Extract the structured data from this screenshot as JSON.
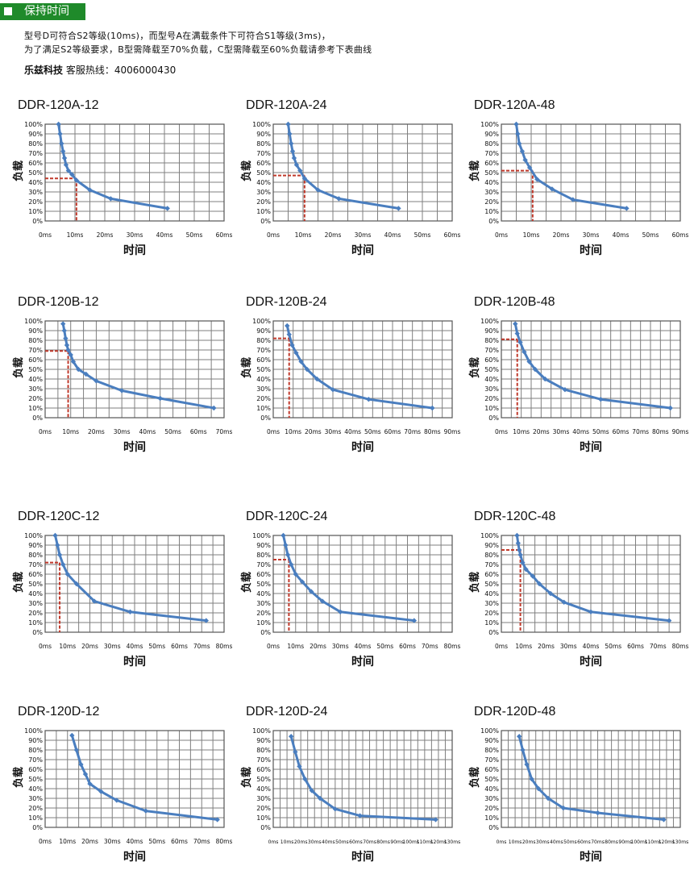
{
  "header": {
    "title": "保持时间"
  },
  "description": {
    "line1": "型号D可符合S2等级(10ms)，而型号A在满载条件下可符合S1等级(3ms)，",
    "line2": "为了满足S2等级要求，B型需降载至70%负载，C型需降载至60%负载请参考下表曲线"
  },
  "hotline": {
    "brand": "乐兹科技",
    "label": "客服热线：",
    "phone": "4006000430"
  },
  "axis_labels": {
    "x": "时间",
    "y": "负载"
  },
  "colors": {
    "line": "#4a7ebf",
    "grid": "#7f7f7f",
    "marker": "#c0392b",
    "header_bg": "#1f8a2a"
  },
  "chart_data": [
    {
      "type": "line",
      "title": "DDR-120A-12",
      "xlabel": "时间",
      "ylabel": "负载",
      "xticks": [
        "0ms",
        "10ms",
        "20ms",
        "30ms",
        "40ms",
        "50ms",
        "60ms"
      ],
      "xlim": [
        0,
        60
      ],
      "yticks": [
        "100%",
        "90%",
        "80%",
        "70%",
        "60%",
        "50%",
        "40%",
        "30%",
        "20%",
        "10%",
        "0%"
      ],
      "ylim": [
        0,
        100
      ],
      "x": [
        4.5,
        5,
        5.5,
        6,
        6.5,
        7,
        7.8,
        9,
        10.5,
        15,
        22,
        41
      ],
      "y": [
        100,
        90,
        80,
        72,
        65,
        58,
        52,
        48,
        42,
        32,
        23,
        13
      ],
      "marker_point": {
        "x": 10.5,
        "y": 44
      },
      "grid": true
    },
    {
      "type": "line",
      "title": "DDR-120A-24",
      "xlabel": "时间",
      "ylabel": "负载",
      "xticks": [
        "0ms",
        "10ms",
        "20ms",
        "30ms",
        "40ms",
        "50ms",
        "60ms"
      ],
      "xlim": [
        0,
        60
      ],
      "yticks": [
        "100%",
        "90%",
        "80%",
        "70%",
        "60%",
        "50%",
        "40%",
        "30%",
        "20%",
        "10%",
        "0%"
      ],
      "ylim": [
        0,
        100
      ],
      "x": [
        5,
        5.5,
        6,
        6.5,
        7,
        7.8,
        9,
        10.5,
        15,
        22,
        42
      ],
      "y": [
        100,
        90,
        80,
        72,
        65,
        58,
        52,
        44,
        32,
        23,
        13
      ],
      "marker_point": {
        "x": 10.5,
        "y": 47
      },
      "grid": true
    },
    {
      "type": "line",
      "title": "DDR-120A-48",
      "xlabel": "时间",
      "ylabel": "负载",
      "xticks": [
        "0ms",
        "10ms",
        "20ms",
        "30ms",
        "40ms",
        "50ms",
        "60ms"
      ],
      "xlim": [
        0,
        60
      ],
      "yticks": [
        "100%",
        "90%",
        "80%",
        "70%",
        "60%",
        "50%",
        "40%",
        "30%",
        "20%",
        "10%",
        "0%"
      ],
      "ylim": [
        0,
        100
      ],
      "x": [
        5,
        5.5,
        6,
        7,
        8,
        9.5,
        12,
        17,
        24,
        42
      ],
      "y": [
        100,
        90,
        80,
        72,
        63,
        55,
        43,
        33,
        22,
        13
      ],
      "marker_point": {
        "x": 10.5,
        "y": 52
      },
      "grid": true
    },
    {
      "type": "line",
      "title": "DDR-120B-12",
      "xlabel": "时间",
      "ylabel": "负载",
      "xticks": [
        "0ms",
        "10ms",
        "20ms",
        "30ms",
        "40ms",
        "50ms",
        "60ms",
        "70ms"
      ],
      "xlim": [
        0,
        70
      ],
      "yticks": [
        "100%",
        "90%",
        "80%",
        "70%",
        "60%",
        "50%",
        "40%",
        "30%",
        "20%",
        "10%",
        "0%"
      ],
      "ylim": [
        0,
        100
      ],
      "x": [
        7,
        7.5,
        8,
        8.5,
        9,
        10,
        11,
        13,
        16,
        20,
        30,
        45,
        66
      ],
      "y": [
        97,
        90,
        82,
        75,
        70,
        65,
        58,
        50,
        45,
        38,
        28,
        20,
        10
      ],
      "marker_point": {
        "x": 9,
        "y": 69
      },
      "grid": true
    },
    {
      "type": "line",
      "title": "DDR-120B-24",
      "xlabel": "时间",
      "ylabel": "负载",
      "xticks": [
        "0ms",
        "10ms",
        "20ms",
        "30ms",
        "40ms",
        "50ms",
        "60ms",
        "70ms",
        "80ms",
        "90ms"
      ],
      "xlim": [
        0,
        90
      ],
      "yticks": [
        "100%",
        "90%",
        "80%",
        "70%",
        "60%",
        "50%",
        "40%",
        "30%",
        "20%",
        "10%",
        "0%"
      ],
      "ylim": [
        0,
        100
      ],
      "x": [
        7,
        8,
        9.5,
        11.5,
        14,
        17,
        22,
        30,
        48,
        80
      ],
      "y": [
        95,
        86,
        75,
        67,
        58,
        50,
        40,
        29,
        19,
        10
      ],
      "marker_point": {
        "x": 8,
        "y": 82
      },
      "grid": true
    },
    {
      "type": "line",
      "title": "DDR-120B-48",
      "xlabel": "时间",
      "ylabel": "负载",
      "xticks": [
        "0ms",
        "10ms",
        "20ms",
        "30ms",
        "40ms",
        "50ms",
        "60ms",
        "70ms",
        "80ms",
        "90ms"
      ],
      "xlim": [
        0,
        90
      ],
      "yticks": [
        "100%",
        "90%",
        "80%",
        "70%",
        "60%",
        "50%",
        "40%",
        "30%",
        "20%",
        "10%",
        "0%"
      ],
      "ylim": [
        0,
        100
      ],
      "x": [
        7,
        8,
        9.5,
        11.5,
        14,
        17,
        22,
        32,
        50,
        85
      ],
      "y": [
        97,
        87,
        78,
        68,
        58,
        50,
        40,
        29,
        19,
        10
      ],
      "marker_point": {
        "x": 8,
        "y": 81
      },
      "grid": true
    },
    {
      "type": "line",
      "title": "DDR-120C-12",
      "xlabel": "时间",
      "ylabel": "负载",
      "xticks": [
        "0ms",
        "10ms",
        "20ms",
        "30ms",
        "40ms",
        "50ms",
        "60ms",
        "70ms",
        "80ms"
      ],
      "xlim": [
        0,
        80
      ],
      "yticks": [
        "100%",
        "90%",
        "80%",
        "70%",
        "60%",
        "50%",
        "40%",
        "30%",
        "20%",
        "10%",
        "0%"
      ],
      "ylim": [
        0,
        100
      ],
      "x": [
        4.5,
        5.5,
        6.5,
        8,
        10,
        14,
        22,
        38,
        72
      ],
      "y": [
        100,
        90,
        80,
        70,
        60,
        50,
        32,
        21,
        12
      ],
      "marker_point": {
        "x": 6.5,
        "y": 72
      },
      "grid": true
    },
    {
      "type": "line",
      "title": "DDR-120C-24",
      "xlabel": "时间",
      "ylabel": "负载",
      "xticks": [
        "0ms",
        "10ms",
        "20ms",
        "30ms",
        "40ms",
        "50ms",
        "60ms",
        "70ms",
        "80ms"
      ],
      "xlim": [
        0,
        80
      ],
      "yticks": [
        "100%",
        "90%",
        "80%",
        "70%",
        "60%",
        "50%",
        "40%",
        "30%",
        "20%",
        "10%",
        "0%"
      ],
      "ylim": [
        0,
        100
      ],
      "x": [
        4.5,
        5.5,
        6.5,
        8,
        10,
        13,
        17,
        22,
        30,
        63
      ],
      "y": [
        100,
        90,
        80,
        70,
        60,
        52,
        42,
        32,
        21,
        12
      ],
      "marker_point": {
        "x": 7,
        "y": 75
      },
      "grid": true
    },
    {
      "type": "line",
      "title": "DDR-120C-48",
      "xlabel": "时间",
      "ylabel": "负载",
      "xticks": [
        "0ms",
        "10ms",
        "20ms",
        "30ms",
        "40ms",
        "50ms",
        "60ms",
        "70ms",
        "80ms"
      ],
      "xlim": [
        0,
        80
      ],
      "yticks": [
        "100%",
        "90%",
        "80%",
        "70%",
        "60%",
        "50%",
        "40%",
        "30%",
        "20%",
        "10%",
        "0%"
      ],
      "ylim": [
        0,
        100
      ],
      "x": [
        7,
        7.5,
        8,
        8.5,
        9.5,
        11,
        14,
        17,
        22,
        28,
        40,
        75
      ],
      "y": [
        100,
        92,
        85,
        80,
        72,
        65,
        58,
        50,
        40,
        31,
        21,
        12
      ],
      "marker_point": {
        "x": 8.5,
        "y": 85
      },
      "grid": true
    },
    {
      "type": "line",
      "title": "DDR-120D-12",
      "xlabel": "时间",
      "ylabel": "负载",
      "xticks": [
        "0ms",
        "10ms",
        "20ms",
        "30ms",
        "40ms",
        "50ms",
        "60ms",
        "70ms",
        "80ms"
      ],
      "xlim": [
        0,
        80
      ],
      "yticks": [
        "100%",
        "90%",
        "80%",
        "70%",
        "60%",
        "50%",
        "40%",
        "30%",
        "20%",
        "10%",
        "0%"
      ],
      "ylim": [
        0,
        100
      ],
      "x": [
        12,
        14,
        16,
        18,
        20,
        25,
        32,
        45,
        77
      ],
      "y": [
        95,
        80,
        65,
        55,
        45,
        37,
        28,
        17,
        8
      ],
      "grid": true
    },
    {
      "type": "line",
      "title": "DDR-120D-24",
      "xlabel": "时间",
      "ylabel": "负载",
      "xticks": [
        "0ms",
        "10ms",
        "20ms",
        "30ms",
        "40ms",
        "50ms",
        "60ms",
        "70ms",
        "80ms",
        "90ms",
        "100ms",
        "110ms",
        "120ms",
        "130ms"
      ],
      "xlim": [
        0,
        130
      ],
      "yticks": [
        "100%",
        "90%",
        "80%",
        "70%",
        "60%",
        "50%",
        "40%",
        "30%",
        "20%",
        "10%",
        "0%"
      ],
      "ylim": [
        0,
        100
      ],
      "x": [
        13,
        16,
        19,
        23,
        28,
        34,
        45,
        63,
        118
      ],
      "y": [
        94,
        78,
        63,
        50,
        38,
        30,
        19,
        12,
        8
      ],
      "grid": true
    },
    {
      "type": "line",
      "title": "DDR-120D-48",
      "xlabel": "时间",
      "ylabel": "负载",
      "xticks": [
        "0ms",
        "10ms",
        "20ms",
        "30ms",
        "40ms",
        "50ms",
        "60ms",
        "70ms",
        "80ms",
        "90ms",
        "100ms",
        "110ms",
        "120ms",
        "130ms"
      ],
      "xlim": [
        0,
        130
      ],
      "yticks": [
        "100%",
        "90%",
        "80%",
        "70%",
        "60%",
        "50%",
        "40%",
        "30%",
        "20%",
        "10%",
        "0%"
      ],
      "ylim": [
        0,
        100
      ],
      "x": [
        13,
        15.5,
        18.5,
        22,
        27,
        34,
        45,
        70,
        118
      ],
      "y": [
        94,
        80,
        65,
        50,
        40,
        30,
        20,
        15,
        8
      ],
      "grid": true
    }
  ]
}
